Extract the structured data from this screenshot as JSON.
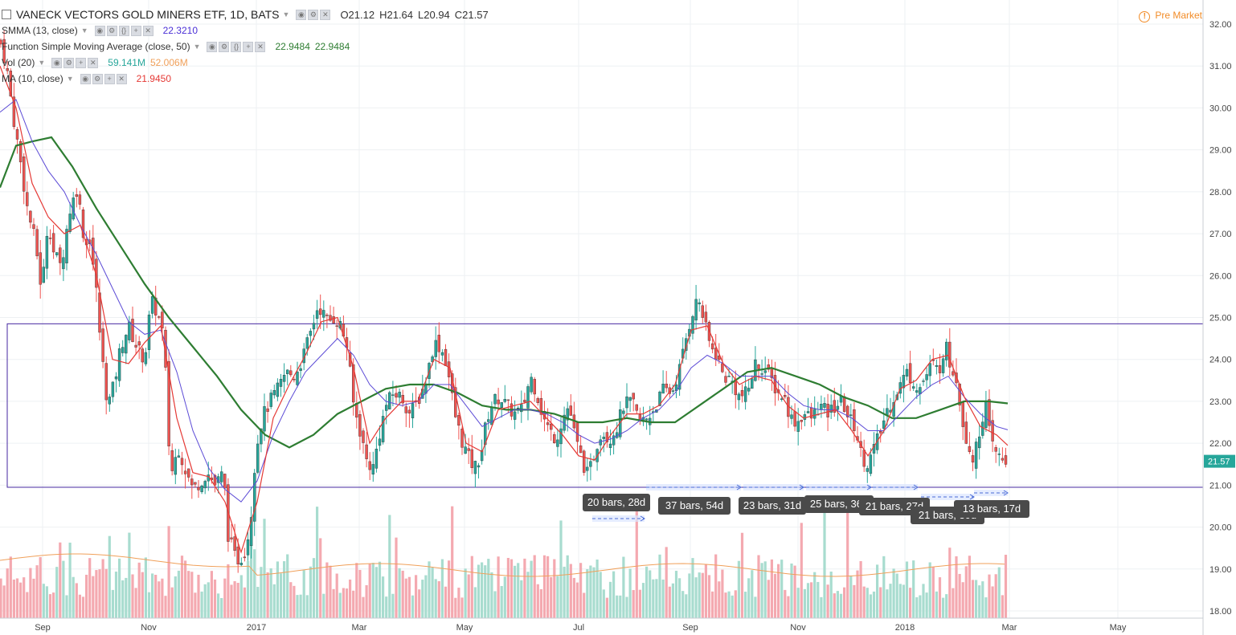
{
  "header": {
    "title": "VANECK VECTORS GOLD MINERS ETF, 1D, BATS",
    "open_label": "O21.12",
    "high_label": "H21.64",
    "low_label": "L20.94",
    "close_label": "C21.57",
    "premarket": "Pre Market"
  },
  "indicators": [
    {
      "label": "SMMA (13, close)",
      "value": "22.3210",
      "color": "#4a2fd6"
    },
    {
      "label": "Function Simple Moving Average (close, 50)",
      "value": "22.9484",
      "value2": "22.9484",
      "color": "#2e7d32"
    },
    {
      "label": "Vol (20)",
      "value": "59.141M",
      "value2": "52.006M",
      "color": "#26a69a",
      "color2": "#f0a05a"
    },
    {
      "label": "MA (10, close)",
      "value": "21.9450",
      "color": "#e53935"
    }
  ],
  "chart_data": {
    "type": "candlestick",
    "symbol": "VANECK VECTORS GOLD MINERS ETF",
    "interval": "1D",
    "ylim": [
      17.8,
      32.2
    ],
    "y_ticks": [
      "32.00",
      "31.00",
      "30.00",
      "29.00",
      "28.00",
      "27.00",
      "26.00",
      "25.00",
      "24.00",
      "23.00",
      "22.00",
      "21.00",
      "20.00",
      "19.00",
      "18.00"
    ],
    "x_ticks": [
      "Sep",
      "Nov",
      "2017",
      "Mar",
      "May",
      "Jul",
      "Sep",
      "Nov",
      "2018",
      "Mar",
      "May"
    ],
    "last_price": "21.57",
    "last_open": 21.12,
    "range_box": {
      "upper": 24.85,
      "lower": 20.95
    },
    "close_path": [
      [
        0,
        31.6
      ],
      [
        8,
        31.0
      ],
      [
        18,
        29.6
      ],
      [
        24,
        28.9
      ],
      [
        34,
        27.6
      ],
      [
        44,
        26.8
      ],
      [
        52,
        25.6
      ],
      [
        60,
        27.4
      ],
      [
        66,
        26.6
      ],
      [
        76,
        26.2
      ],
      [
        86,
        27.5
      ],
      [
        96,
        28.1
      ],
      [
        106,
        26.7
      ],
      [
        112,
        26.9
      ],
      [
        120,
        25.6
      ],
      [
        126,
        24.2
      ],
      [
        134,
        22.9
      ],
      [
        142,
        23.4
      ],
      [
        150,
        24.3
      ],
      [
        160,
        24.8
      ],
      [
        170,
        24.3
      ],
      [
        180,
        24.0
      ],
      [
        188,
        25.4
      ],
      [
        196,
        25.1
      ],
      [
        204,
        24.5
      ],
      [
        212,
        21.2
      ],
      [
        222,
        21.9
      ],
      [
        232,
        21.3
      ],
      [
        240,
        20.9
      ],
      [
        250,
        21.1
      ],
      [
        258,
        21.3
      ],
      [
        268,
        21.0
      ],
      [
        278,
        21.3
      ],
      [
        284,
        19.8
      ],
      [
        292,
        19.3
      ],
      [
        298,
        19.2
      ],
      [
        306,
        19.5
      ],
      [
        312,
        20.2
      ],
      [
        318,
        21.8
      ],
      [
        326,
        22.6
      ],
      [
        336,
        23.0
      ],
      [
        346,
        23.3
      ],
      [
        356,
        23.7
      ],
      [
        366,
        23.6
      ],
      [
        376,
        24.0
      ],
      [
        386,
        24.6
      ],
      [
        396,
        25.3
      ],
      [
        408,
        24.9
      ],
      [
        416,
        25.0
      ],
      [
        424,
        24.8
      ],
      [
        432,
        24.3
      ],
      [
        440,
        22.9
      ],
      [
        448,
        22.3
      ],
      [
        456,
        21.6
      ],
      [
        464,
        21.4
      ],
      [
        472,
        22.2
      ],
      [
        480,
        22.9
      ],
      [
        490,
        23.2
      ],
      [
        500,
        23.1
      ],
      [
        510,
        22.7
      ],
      [
        520,
        23.0
      ],
      [
        530,
        23.5
      ],
      [
        540,
        24.4
      ],
      [
        548,
        24.3
      ],
      [
        556,
        23.9
      ],
      [
        566,
        22.7
      ],
      [
        574,
        22.1
      ],
      [
        582,
        21.7
      ],
      [
        590,
        21.4
      ],
      [
        598,
        21.7
      ],
      [
        606,
        22.6
      ],
      [
        614,
        23.0
      ],
      [
        622,
        23.1
      ],
      [
        630,
        22.9
      ],
      [
        640,
        22.7
      ],
      [
        650,
        22.8
      ],
      [
        660,
        23.6
      ],
      [
        668,
        23.2
      ],
      [
        676,
        22.6
      ],
      [
        684,
        22.3
      ],
      [
        692,
        22.1
      ],
      [
        700,
        22.6
      ],
      [
        708,
        22.9
      ],
      [
        716,
        22.1
      ],
      [
        724,
        21.6
      ],
      [
        732,
        21.2
      ],
      [
        740,
        21.8
      ],
      [
        748,
        22.3
      ],
      [
        758,
        22.1
      ],
      [
        768,
        22.4
      ],
      [
        776,
        22.9
      ],
      [
        786,
        23.0
      ],
      [
        796,
        22.5
      ],
      [
        806,
        22.6
      ],
      [
        816,
        22.9
      ],
      [
        826,
        23.3
      ],
      [
        836,
        23.2
      ],
      [
        846,
        23.8
      ],
      [
        856,
        24.7
      ],
      [
        864,
        25.3
      ],
      [
        870,
        25.4
      ],
      [
        876,
        24.9
      ],
      [
        884,
        24.3
      ],
      [
        892,
        24.1
      ],
      [
        900,
        23.6
      ],
      [
        910,
        23.5
      ],
      [
        920,
        23.1
      ],
      [
        930,
        23.2
      ],
      [
        940,
        23.9
      ],
      [
        950,
        23.8
      ],
      [
        960,
        23.5
      ],
      [
        968,
        23.2
      ],
      [
        976,
        23.1
      ],
      [
        984,
        22.6
      ],
      [
        992,
        22.5
      ],
      [
        1000,
        22.7
      ],
      [
        1010,
        22.6
      ],
      [
        1020,
        22.9
      ],
      [
        1030,
        22.7
      ],
      [
        1040,
        22.9
      ],
      [
        1048,
        23.0
      ],
      [
        1056,
        22.6
      ],
      [
        1064,
        22.4
      ],
      [
        1072,
        21.7
      ],
      [
        1080,
        21.5
      ],
      [
        1088,
        21.9
      ],
      [
        1096,
        22.3
      ],
      [
        1104,
        22.8
      ],
      [
        1112,
        23.1
      ],
      [
        1120,
        23.4
      ],
      [
        1128,
        23.7
      ],
      [
        1136,
        23.5
      ],
      [
        1144,
        23.3
      ],
      [
        1152,
        23.6
      ],
      [
        1160,
        23.9
      ],
      [
        1168,
        23.7
      ],
      [
        1176,
        24.4
      ],
      [
        1182,
        23.9
      ],
      [
        1190,
        23.6
      ],
      [
        1196,
        22.7
      ],
      [
        1204,
        22.0
      ],
      [
        1212,
        21.6
      ],
      [
        1220,
        22.4
      ],
      [
        1226,
        23.0
      ],
      [
        1232,
        22.1
      ],
      [
        1238,
        21.8
      ],
      [
        1246,
        21.6
      ],
      [
        1252,
        21.57
      ]
    ],
    "sma50_path": [
      [
        0,
        28.1
      ],
      [
        20,
        29.1
      ],
      [
        40,
        29.2
      ],
      [
        64,
        29.3
      ],
      [
        90,
        28.6
      ],
      [
        120,
        27.6
      ],
      [
        150,
        26.7
      ],
      [
        180,
        25.8
      ],
      [
        210,
        25.0
      ],
      [
        240,
        24.3
      ],
      [
        270,
        23.6
      ],
      [
        300,
        22.8
      ],
      [
        330,
        22.2
      ],
      [
        360,
        21.9
      ],
      [
        390,
        22.2
      ],
      [
        420,
        22.7
      ],
      [
        450,
        23.0
      ],
      [
        480,
        23.3
      ],
      [
        510,
        23.4
      ],
      [
        540,
        23.4
      ],
      [
        570,
        23.2
      ],
      [
        600,
        22.9
      ],
      [
        630,
        22.8
      ],
      [
        660,
        22.8
      ],
      [
        690,
        22.7
      ],
      [
        720,
        22.5
      ],
      [
        750,
        22.5
      ],
      [
        780,
        22.6
      ],
      [
        810,
        22.5
      ],
      [
        840,
        22.5
      ],
      [
        870,
        22.9
      ],
      [
        900,
        23.3
      ],
      [
        930,
        23.7
      ],
      [
        960,
        23.8
      ],
      [
        990,
        23.6
      ],
      [
        1020,
        23.4
      ],
      [
        1050,
        23.1
      ],
      [
        1080,
        22.9
      ],
      [
        1110,
        22.6
      ],
      [
        1140,
        22.6
      ],
      [
        1170,
        22.8
      ],
      [
        1200,
        23.0
      ],
      [
        1230,
        23.0
      ],
      [
        1254,
        22.95
      ]
    ],
    "smma13_path": [
      [
        0,
        29.9
      ],
      [
        20,
        30.2
      ],
      [
        40,
        29.2
      ],
      [
        60,
        28.5
      ],
      [
        80,
        28.0
      ],
      [
        100,
        27.2
      ],
      [
        120,
        26.5
      ],
      [
        140,
        25.7
      ],
      [
        160,
        24.9
      ],
      [
        180,
        24.6
      ],
      [
        200,
        24.7
      ],
      [
        220,
        23.7
      ],
      [
        240,
        22.3
      ],
      [
        260,
        21.4
      ],
      [
        280,
        20.9
      ],
      [
        300,
        20.6
      ],
      [
        320,
        21.1
      ],
      [
        340,
        22.2
      ],
      [
        360,
        23.0
      ],
      [
        380,
        23.7
      ],
      [
        400,
        24.1
      ],
      [
        420,
        24.5
      ],
      [
        440,
        24.1
      ],
      [
        460,
        23.4
      ],
      [
        480,
        23.0
      ],
      [
        500,
        22.9
      ],
      [
        520,
        23.0
      ],
      [
        540,
        23.4
      ],
      [
        560,
        23.4
      ],
      [
        580,
        22.9
      ],
      [
        600,
        22.4
      ],
      [
        620,
        22.6
      ],
      [
        640,
        22.8
      ],
      [
        660,
        22.8
      ],
      [
        680,
        22.7
      ],
      [
        700,
        22.5
      ],
      [
        720,
        22.2
      ],
      [
        740,
        22.0
      ],
      [
        760,
        22.1
      ],
      [
        780,
        22.3
      ],
      [
        800,
        22.6
      ],
      [
        820,
        22.8
      ],
      [
        840,
        23.2
      ],
      [
        860,
        23.8
      ],
      [
        880,
        24.1
      ],
      [
        900,
        23.9
      ],
      [
        920,
        23.6
      ],
      [
        940,
        23.6
      ],
      [
        960,
        23.6
      ],
      [
        980,
        23.2
      ],
      [
        1000,
        22.9
      ],
      [
        1020,
        22.8
      ],
      [
        1040,
        22.8
      ],
      [
        1060,
        22.6
      ],
      [
        1080,
        22.3
      ],
      [
        1100,
        22.3
      ],
      [
        1120,
        22.7
      ],
      [
        1140,
        23.1
      ],
      [
        1160,
        23.4
      ],
      [
        1180,
        23.6
      ],
      [
        1200,
        23.1
      ],
      [
        1220,
        22.7
      ],
      [
        1240,
        22.4
      ],
      [
        1254,
        22.32
      ]
    ],
    "ma10_path": [
      [
        0,
        31.0
      ],
      [
        20,
        30.0
      ],
      [
        40,
        28.2
      ],
      [
        60,
        27.4
      ],
      [
        80,
        27.0
      ],
      [
        100,
        27.2
      ],
      [
        120,
        26.0
      ],
      [
        140,
        24.0
      ],
      [
        160,
        23.9
      ],
      [
        180,
        24.4
      ],
      [
        200,
        24.8
      ],
      [
        220,
        22.6
      ],
      [
        240,
        21.3
      ],
      [
        260,
        21.2
      ],
      [
        280,
        20.6
      ],
      [
        300,
        19.4
      ],
      [
        320,
        20.6
      ],
      [
        340,
        22.6
      ],
      [
        360,
        23.4
      ],
      [
        380,
        24.1
      ],
      [
        400,
        24.9
      ],
      [
        420,
        25.0
      ],
      [
        440,
        23.8
      ],
      [
        460,
        22.0
      ],
      [
        480,
        22.6
      ],
      [
        500,
        23.0
      ],
      [
        520,
        23.0
      ],
      [
        540,
        24.0
      ],
      [
        560,
        23.8
      ],
      [
        580,
        22.0
      ],
      [
        600,
        21.8
      ],
      [
        620,
        22.8
      ],
      [
        640,
        22.9
      ],
      [
        660,
        23.0
      ],
      [
        680,
        22.6
      ],
      [
        700,
        22.2
      ],
      [
        720,
        21.7
      ],
      [
        740,
        21.6
      ],
      [
        760,
        22.2
      ],
      [
        780,
        22.7
      ],
      [
        800,
        22.7
      ],
      [
        820,
        22.9
      ],
      [
        840,
        23.4
      ],
      [
        860,
        24.7
      ],
      [
        880,
        24.8
      ],
      [
        900,
        23.9
      ],
      [
        920,
        23.4
      ],
      [
        940,
        23.6
      ],
      [
        960,
        23.5
      ],
      [
        980,
        22.9
      ],
      [
        1000,
        22.6
      ],
      [
        1020,
        22.7
      ],
      [
        1040,
        22.8
      ],
      [
        1060,
        22.3
      ],
      [
        1080,
        21.7
      ],
      [
        1100,
        22.3
      ],
      [
        1120,
        23.3
      ],
      [
        1140,
        23.5
      ],
      [
        1160,
        24.0
      ],
      [
        1180,
        24.1
      ],
      [
        1200,
        23.1
      ],
      [
        1220,
        22.4
      ],
      [
        1240,
        22.2
      ],
      [
        1254,
        21.95
      ]
    ],
    "measure_labels": [
      "20 bars, 28d",
      "37 bars, 54d",
      "23 bars, 31d",
      "25 bars, 36d",
      "21 bars, 27d",
      "21 bars, 30d",
      "13 bars, 17d"
    ],
    "volume": {
      "label": "Vol (20)",
      "last": "59.141M",
      "average": "52.006M"
    }
  },
  "colors": {
    "up": "#26a69a",
    "down": "#ef5350",
    "up_vol": "#a8dccf",
    "down_vol": "#f4a9b0",
    "box": "#4527a0",
    "sma50": "#2e7d32",
    "smma13": "#5c4bd6",
    "ma10": "#e53935",
    "vol_ma": "#f0a05a",
    "last_price_bg": "#26a69a",
    "measure": "#4a6bd6",
    "tag_bg": "#4a4a4a"
  }
}
